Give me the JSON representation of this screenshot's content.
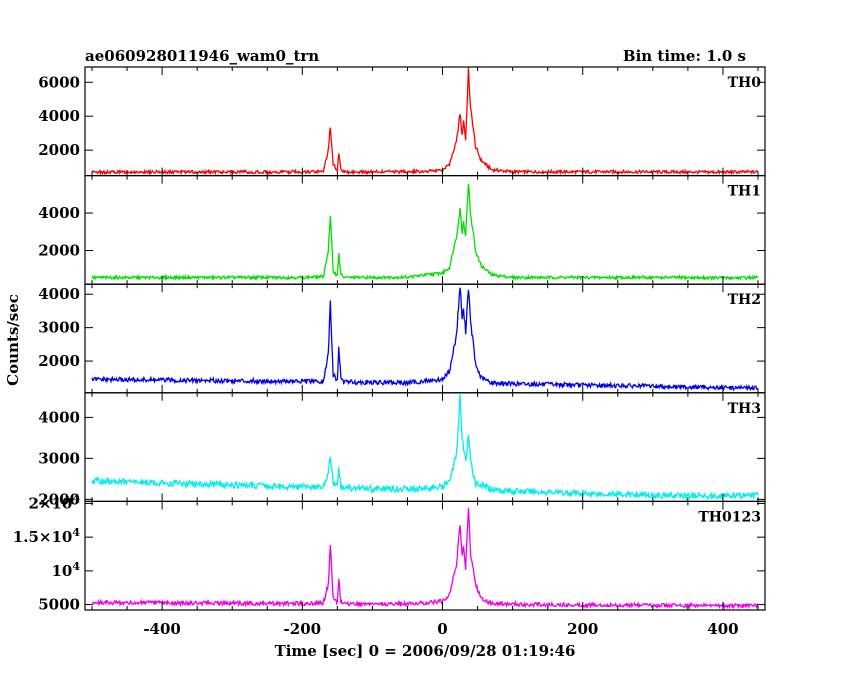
{
  "title": "ae060928011946_wam0_trn",
  "bin_time_label": "Bin time: 1.0 s",
  "chart_data": {
    "type": "line",
    "title": "ae060928011946_wam0_trn",
    "subtitle": "Bin time: 1.0 s",
    "xlabel": "Time [sec] 0 = 2006/09/28 01:19:46",
    "ylabel": "Counts/sec",
    "xlim": [
      -510,
      460
    ],
    "x_ticks": [
      -400,
      -200,
      0,
      200,
      400
    ],
    "grid": false,
    "legend": "none",
    "series": [
      {
        "name": "TH0",
        "color": "#ff0000",
        "ylim": [
          500,
          6900
        ],
        "y_ticks": [
          {
            "v": 2000,
            "label": "2000"
          },
          {
            "v": 4000,
            "label": "4000"
          },
          {
            "v": 6000,
            "label": "6000"
          }
        ],
        "x": [
          -500,
          -400,
          -300,
          -200,
          -170,
          -163,
          -160,
          -156,
          -150,
          -148,
          -145,
          -140,
          -100,
          -50,
          0,
          10,
          20,
          25,
          28,
          30,
          33,
          37,
          40,
          43,
          47,
          55,
          70,
          100,
          200,
          300,
          400,
          450
        ],
        "y": [
          700,
          720,
          710,
          720,
          750,
          2000,
          3400,
          1200,
          800,
          1900,
          800,
          700,
          720,
          730,
          800,
          1200,
          2500,
          4200,
          2800,
          3800,
          2600,
          6700,
          4400,
          3600,
          2200,
          1400,
          850,
          720,
          720,
          720,
          700,
          720
        ]
      },
      {
        "name": "TH1",
        "color": "#00e000",
        "ylim": [
          200,
          6000
        ],
        "y_ticks": [
          {
            "v": 2000,
            "label": "2000"
          },
          {
            "v": 4000,
            "label": "4000"
          }
        ],
        "x": [
          -500,
          -400,
          -300,
          -200,
          -170,
          -163,
          -160,
          -156,
          -150,
          -148,
          -145,
          -140,
          -100,
          -50,
          0,
          10,
          20,
          25,
          28,
          30,
          33,
          37,
          40,
          43,
          47,
          55,
          70,
          100,
          200,
          300,
          400,
          450
        ],
        "y": [
          550,
          560,
          560,
          560,
          600,
          2000,
          3800,
          900,
          650,
          1900,
          700,
          560,
          560,
          580,
          800,
          1100,
          2800,
          4200,
          3000,
          3600,
          2800,
          5700,
          3800,
          3200,
          2000,
          1200,
          700,
          560,
          560,
          560,
          540,
          550
        ]
      },
      {
        "name": "TH2",
        "color": "#0000ee",
        "ylim": [
          1050,
          4300
        ],
        "y_ticks": [
          {
            "v": 2000,
            "label": "2000"
          },
          {
            "v": 3000,
            "label": "3000"
          },
          {
            "v": 4000,
            "label": "4000"
          }
        ],
        "x": [
          -500,
          -400,
          -300,
          -200,
          -170,
          -163,
          -160,
          -156,
          -150,
          -148,
          -145,
          -140,
          -100,
          -50,
          0,
          10,
          20,
          25,
          28,
          30,
          33,
          37,
          40,
          43,
          47,
          55,
          70,
          100,
          200,
          300,
          400,
          450
        ],
        "y": [
          1450,
          1430,
          1410,
          1390,
          1380,
          2200,
          3750,
          1600,
          1400,
          2450,
          1450,
          1380,
          1360,
          1350,
          1450,
          1700,
          2800,
          4250,
          3300,
          3500,
          2900,
          4250,
          3100,
          2700,
          1900,
          1500,
          1350,
          1320,
          1280,
          1250,
          1200,
          1200
        ]
      },
      {
        "name": "TH3",
        "color": "#00eeee",
        "ylim": [
          1950,
          4600
        ],
        "y_ticks": [
          {
            "v": 2000,
            "label": "2000"
          },
          {
            "v": 3000,
            "label": "3000"
          },
          {
            "v": 4000,
            "label": "4000"
          }
        ],
        "x": [
          -500,
          -400,
          -300,
          -200,
          -170,
          -163,
          -160,
          -156,
          -150,
          -148,
          -145,
          -140,
          -100,
          -50,
          0,
          10,
          20,
          25,
          28,
          30,
          33,
          37,
          40,
          43,
          47,
          55,
          70,
          100,
          200,
          300,
          400,
          450
        ],
        "y": [
          2450,
          2400,
          2350,
          2300,
          2300,
          2600,
          3050,
          2400,
          2300,
          2800,
          2300,
          2280,
          2260,
          2250,
          2300,
          2450,
          3100,
          4500,
          3400,
          3300,
          2900,
          3600,
          2900,
          2700,
          2400,
          2350,
          2250,
          2200,
          2150,
          2100,
          2080,
          2100
        ]
      },
      {
        "name": "TH0123",
        "color": "#ee00ee",
        "ylim": [
          4200,
          20300
        ],
        "y_ticks": [
          {
            "v": 5000,
            "label": "5000"
          },
          {
            "v": 10000,
            "label": "10^4"
          },
          {
            "v": 15000,
            "label": "1.5×10^4"
          },
          {
            "v": 20000,
            "label": "2×10^4"
          }
        ],
        "x": [
          -500,
          -400,
          -300,
          -200,
          -170,
          -163,
          -160,
          -156,
          -150,
          -148,
          -145,
          -140,
          -100,
          -50,
          0,
          10,
          20,
          25,
          28,
          30,
          33,
          37,
          40,
          43,
          47,
          55,
          70,
          100,
          200,
          300,
          400,
          450
        ],
        "y": [
          5300,
          5250,
          5200,
          5150,
          5200,
          8000,
          13800,
          6000,
          5300,
          9000,
          5300,
          5150,
          5100,
          5100,
          5500,
          6500,
          11000,
          17000,
          12000,
          13500,
          10500,
          19800,
          12500,
          11000,
          8000,
          6000,
          5200,
          5050,
          4950,
          4900,
          4850,
          4850
        ]
      }
    ]
  }
}
